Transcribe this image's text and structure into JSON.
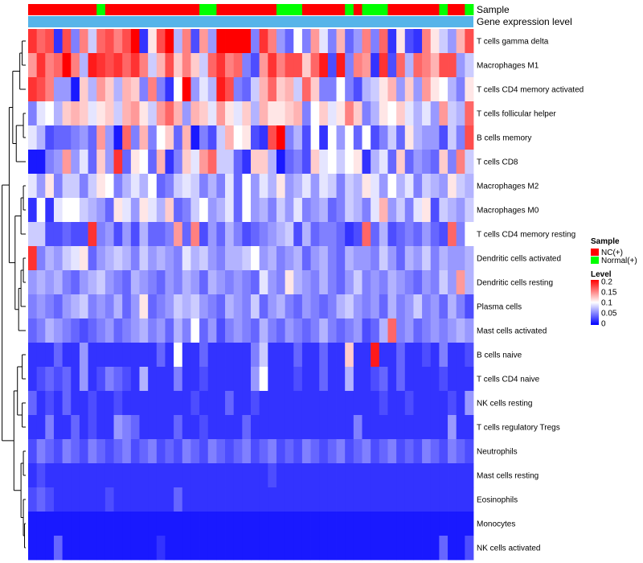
{
  "chart_data": {
    "type": "heatmap",
    "title": "",
    "n_samples": 52,
    "annotation_tracks": [
      "Sample",
      "Gene expression level"
    ],
    "sample_groups": [
      "NC(+)",
      "NC(+)",
      "NC(+)",
      "NC(+)",
      "NC(+)",
      "NC(+)",
      "NC(+)",
      "NC(+)",
      "Normal(+)",
      "NC(+)",
      "NC(+)",
      "NC(+)",
      "NC(+)",
      "NC(+)",
      "NC(+)",
      "NC(+)",
      "NC(+)",
      "NC(+)",
      "NC(+)",
      "NC(+)",
      "Normal(+)",
      "Normal(+)",
      "NC(+)",
      "NC(+)",
      "NC(+)",
      "NC(+)",
      "NC(+)",
      "NC(+)",
      "NC(+)",
      "Normal(+)",
      "Normal(+)",
      "Normal(+)",
      "NC(+)",
      "NC(+)",
      "NC(+)",
      "NC(+)",
      "NC(+)",
      "Normal(+)",
      "NC(+)",
      "Normal(+)",
      "Normal(+)",
      "Normal(+)",
      "NC(+)",
      "NC(+)",
      "NC(+)",
      "NC(+)",
      "NC(+)",
      "NC(+)",
      "Normal(+)",
      "NC(+)",
      "NC(+)",
      "Normal(+)"
    ],
    "rows": [
      "T cells gamma delta",
      "Macrophages M1",
      "T cells CD4 memory activated",
      "T cells follicular helper",
      "B cells memory",
      "T cells CD8",
      "Macrophages M2",
      "Macrophages M0",
      "T cells CD4 memory resting",
      "Dendritic cells activated",
      "Dendritic cells resting",
      "Plasma cells",
      "Mast cells activated",
      "B cells naive",
      "T cells CD4 naive",
      "NK cells resting",
      "T cells regulatory  Tregs",
      "Neutrophils",
      "Mast cells resting",
      "Eosinophils",
      "Monocytes",
      "NK cells activated"
    ],
    "level_range": [
      0,
      0.2
    ],
    "legend": {
      "sample_title": "Sample",
      "sample_entries": [
        {
          "label": "NC(+)",
          "color": "#ff0000"
        },
        {
          "label": "Normal(+)",
          "color": "#00ff00"
        }
      ],
      "level_title": "Level",
      "level_ticks": [
        "0.2",
        "0.15",
        "0.1",
        "0.05",
        "0"
      ]
    },
    "values": [
      [
        0.18,
        0.16,
        0.17,
        0.02,
        0.17,
        0.05,
        0.15,
        0.08,
        0.16,
        0.17,
        0.15,
        0.17,
        0.2,
        0.02,
        0.11,
        0.17,
        0.2,
        0.07,
        0.15,
        0.03,
        0.14,
        0.06,
        0.2,
        0.2,
        0.2,
        0.2,
        0.05,
        0.18,
        0.15,
        0.06,
        0.04,
        0.1,
        0.05,
        0.14,
        0.09,
        0.05,
        0.13,
        0.04,
        0.06,
        0.15,
        0.05,
        0.16,
        0.02,
        0.11,
        0.03,
        0.02,
        0.15,
        0.11,
        0.08,
        0.06,
        0.13,
        0.17
      ],
      [
        0.14,
        0.18,
        0.15,
        0.16,
        0.2,
        0.15,
        0.07,
        0.19,
        0.18,
        0.17,
        0.18,
        0.16,
        0.18,
        0.15,
        0.08,
        0.13,
        0.17,
        0.12,
        0.15,
        0.12,
        0.08,
        0.16,
        0.18,
        0.15,
        0.16,
        0.05,
        0.03,
        0.14,
        0.18,
        0.15,
        0.17,
        0.17,
        0.12,
        0.16,
        0.19,
        0.03,
        0.19,
        0.05,
        0.15,
        0.14,
        0.02,
        0.18,
        0.03,
        0.16,
        0.07,
        0.16,
        0.15,
        0.13,
        0.17,
        0.17,
        0.06,
        0.08
      ],
      [
        0.18,
        0.17,
        0.15,
        0.06,
        0.06,
        0.01,
        0.12,
        0.07,
        0.14,
        0.12,
        0.07,
        0.13,
        0.12,
        0.05,
        0.15,
        0.05,
        0.02,
        0.1,
        0.2,
        0.06,
        0.09,
        0.07,
        0.19,
        0.17,
        0.05,
        0.04,
        0.08,
        0.13,
        0.16,
        0.12,
        0.13,
        0.08,
        0.16,
        0.12,
        0.05,
        0.05,
        0.1,
        0.05,
        0.03,
        0.07,
        0.08,
        0.11,
        0.13,
        0.06,
        0.12,
        0.06,
        0.14,
        0.11,
        0.1,
        0.07,
        0.05,
        0.11
      ],
      [
        0.05,
        0.09,
        0.1,
        0.07,
        0.12,
        0.13,
        0.12,
        0.09,
        0.11,
        0.12,
        0.08,
        0.13,
        0.14,
        0.11,
        0.08,
        0.14,
        0.16,
        0.13,
        0.06,
        0.13,
        0.12,
        0.09,
        0.14,
        0.11,
        0.09,
        0.12,
        0.07,
        0.13,
        0.11,
        0.11,
        0.12,
        0.13,
        0.05,
        0.1,
        0.12,
        0.09,
        0.11,
        0.15,
        0.12,
        0.05,
        0.07,
        0.11,
        0.1,
        0.12,
        0.09,
        0.07,
        0.09,
        0.06,
        0.14,
        0.08,
        0.07,
        0.16
      ],
      [
        0.09,
        0.07,
        0.03,
        0.04,
        0.04,
        0.05,
        0.06,
        0.04,
        0.14,
        0.06,
        0.01,
        0.16,
        0.05,
        0.13,
        0.05,
        0.1,
        0.12,
        0.04,
        0.13,
        0.01,
        0.05,
        0.03,
        0.08,
        0.13,
        0.1,
        0.11,
        0.03,
        0.02,
        0.17,
        0.2,
        0.05,
        0.07,
        0.03,
        0.1,
        0.02,
        0.1,
        0.06,
        0.1,
        0.04,
        0.1,
        0.03,
        0.05,
        0.08,
        0.04,
        0.11,
        0.07,
        0.06,
        0.06,
        0.03,
        0.08,
        0.05,
        0.17
      ],
      [
        0.01,
        0.01,
        0.05,
        0.06,
        0.14,
        0.06,
        0.09,
        0.04,
        0.12,
        0.06,
        0.18,
        0.04,
        0.11,
        0.1,
        0.04,
        0.13,
        0.02,
        0.05,
        0.12,
        0.09,
        0.14,
        0.16,
        0.08,
        0.08,
        0.04,
        0.02,
        0.12,
        0.12,
        0.07,
        0.01,
        0.04,
        0.05,
        0.03,
        0.12,
        0.09,
        0.1,
        0.08,
        0.1,
        0.11,
        0.02,
        0.07,
        0.09,
        0.04,
        0.12,
        0.04,
        0.06,
        0.05,
        0.04,
        0.12,
        0.05,
        0.15,
        0.08
      ],
      [
        0.09,
        0.06,
        0.11,
        0.05,
        0.08,
        0.08,
        0.05,
        0.08,
        0.11,
        0.1,
        0.05,
        0.07,
        0.09,
        0.07,
        0.1,
        0.04,
        0.05,
        0.08,
        0.09,
        0.08,
        0.05,
        0.07,
        0.05,
        0.09,
        0.04,
        0.1,
        0.06,
        0.09,
        0.07,
        0.11,
        0.06,
        0.07,
        0.09,
        0.06,
        0.09,
        0.08,
        0.05,
        0.08,
        0.07,
        0.11,
        0.09,
        0.06,
        0.1,
        0.07,
        0.09,
        0.05,
        0.08,
        0.07,
        0.06,
        0.11,
        0.08,
        0.07
      ],
      [
        0.02,
        0.1,
        0.02,
        0.09,
        0.1,
        0.1,
        0.08,
        0.07,
        0.06,
        0.04,
        0.11,
        0.09,
        0.06,
        0.11,
        0.09,
        0.07,
        0.12,
        0.04,
        0.05,
        0.08,
        0.1,
        0.06,
        0.07,
        0.09,
        0.04,
        0.1,
        0.06,
        0.07,
        0.05,
        0.08,
        0.06,
        0.09,
        0.05,
        0.06,
        0.07,
        0.04,
        0.05,
        0.08,
        0.07,
        0.05,
        0.09,
        0.13,
        0.06,
        0.08,
        0.05,
        0.09,
        0.11,
        0.03,
        0.08,
        0.07,
        0.06,
        0.08
      ],
      [
        0.08,
        0.08,
        0.03,
        0.03,
        0.04,
        0.03,
        0.03,
        0.18,
        0.05,
        0.06,
        0.03,
        0.06,
        0.03,
        0.07,
        0.04,
        0.04,
        0.05,
        0.14,
        0.04,
        0.15,
        0.03,
        0.06,
        0.04,
        0.07,
        0.05,
        0.03,
        0.04,
        0.05,
        0.06,
        0.07,
        0.08,
        0.03,
        0.07,
        0.04,
        0.05,
        0.05,
        0.04,
        0.02,
        0.03,
        0.16,
        0.04,
        0.07,
        0.03,
        0.04,
        0.05,
        0.04,
        0.06,
        0.04,
        0.03,
        0.16,
        0.05,
        0.1
      ],
      [
        0.18,
        0.05,
        0.07,
        0.06,
        0.08,
        0.09,
        0.11,
        0.04,
        0.06,
        0.07,
        0.08,
        0.07,
        0.05,
        0.08,
        0.06,
        0.07,
        0.06,
        0.05,
        0.09,
        0.07,
        0.08,
        0.06,
        0.05,
        0.07,
        0.07,
        0.08,
        0.1,
        0.06,
        0.07,
        0.05,
        0.06,
        0.07,
        0.04,
        0.06,
        0.07,
        0.05,
        0.04,
        0.07,
        0.06,
        0.06,
        0.05,
        0.08,
        0.06,
        0.04,
        0.07,
        0.06,
        0.08,
        0.05,
        0.07,
        0.06,
        0.06,
        0.07
      ],
      [
        0.06,
        0.07,
        0.06,
        0.07,
        0.05,
        0.04,
        0.06,
        0.07,
        0.08,
        0.06,
        0.05,
        0.04,
        0.07,
        0.06,
        0.05,
        0.04,
        0.06,
        0.05,
        0.07,
        0.06,
        0.04,
        0.07,
        0.06,
        0.05,
        0.06,
        0.05,
        0.04,
        0.09,
        0.06,
        0.05,
        0.11,
        0.07,
        0.06,
        0.05,
        0.07,
        0.05,
        0.04,
        0.06,
        0.08,
        0.05,
        0.06,
        0.05,
        0.07,
        0.06,
        0.05,
        0.04,
        0.06,
        0.05,
        0.08,
        0.06,
        0.14,
        0.07
      ],
      [
        0.05,
        0.06,
        0.05,
        0.04,
        0.06,
        0.07,
        0.08,
        0.05,
        0.06,
        0.05,
        0.07,
        0.04,
        0.06,
        0.11,
        0.04,
        0.05,
        0.06,
        0.08,
        0.07,
        0.08,
        0.06,
        0.05,
        0.04,
        0.07,
        0.06,
        0.05,
        0.08,
        0.04,
        0.06,
        0.07,
        0.05,
        0.04,
        0.06,
        0.05,
        0.04,
        0.05,
        0.07,
        0.08,
        0.06,
        0.05,
        0.06,
        0.04,
        0.07,
        0.05,
        0.06,
        0.08,
        0.05,
        0.06,
        0.04,
        0.07,
        0.05,
        0.03
      ],
      [
        0.04,
        0.05,
        0.07,
        0.06,
        0.05,
        0.04,
        0.03,
        0.04,
        0.05,
        0.06,
        0.04,
        0.05,
        0.06,
        0.07,
        0.05,
        0.06,
        0.04,
        0.07,
        0.05,
        0.1,
        0.04,
        0.06,
        0.03,
        0.05,
        0.06,
        0.05,
        0.04,
        0.07,
        0.05,
        0.04,
        0.06,
        0.05,
        0.04,
        0.05,
        0.07,
        0.05,
        0.04,
        0.05,
        0.06,
        0.03,
        0.04,
        0.07,
        0.16,
        0.05,
        0.06,
        0.04,
        0.05,
        0.06,
        0.05,
        0.06,
        0.07,
        0.06
      ],
      [
        0.02,
        0.02,
        0.02,
        0.04,
        0.02,
        0.02,
        0.06,
        0.02,
        0.02,
        0.02,
        0.02,
        0.02,
        0.02,
        0.02,
        0.02,
        0.04,
        0.02,
        0.1,
        0.02,
        0.02,
        0.04,
        0.02,
        0.02,
        0.02,
        0.02,
        0.02,
        0.05,
        0.08,
        0.02,
        0.02,
        0.02,
        0.04,
        0.02,
        0.02,
        0.04,
        0.02,
        0.02,
        0.12,
        0.02,
        0.02,
        0.19,
        0.02,
        0.02,
        0.04,
        0.02,
        0.02,
        0.03,
        0.02,
        0.05,
        0.02,
        0.02,
        0.03
      ],
      [
        0.02,
        0.03,
        0.04,
        0.03,
        0.04,
        0.02,
        0.06,
        0.02,
        0.03,
        0.05,
        0.04,
        0.03,
        0.02,
        0.07,
        0.02,
        0.02,
        0.02,
        0.05,
        0.02,
        0.02,
        0.03,
        0.02,
        0.02,
        0.02,
        0.02,
        0.02,
        0.06,
        0.1,
        0.02,
        0.02,
        0.02,
        0.03,
        0.02,
        0.02,
        0.04,
        0.02,
        0.02,
        0.07,
        0.02,
        0.02,
        0.03,
        0.04,
        0.02,
        0.04,
        0.02,
        0.02,
        0.02,
        0.02,
        0.03,
        0.02,
        0.02,
        0.02
      ],
      [
        0.04,
        0.02,
        0.03,
        0.02,
        0.04,
        0.02,
        0.02,
        0.03,
        0.02,
        0.02,
        0.03,
        0.02,
        0.02,
        0.02,
        0.02,
        0.02,
        0.02,
        0.02,
        0.02,
        0.03,
        0.02,
        0.02,
        0.02,
        0.04,
        0.02,
        0.02,
        0.03,
        0.02,
        0.02,
        0.02,
        0.02,
        0.02,
        0.02,
        0.02,
        0.02,
        0.02,
        0.02,
        0.02,
        0.02,
        0.02,
        0.02,
        0.03,
        0.02,
        0.02,
        0.03,
        0.02,
        0.02,
        0.02,
        0.02,
        0.03,
        0.02,
        0.06
      ],
      [
        0.02,
        0.02,
        0.05,
        0.02,
        0.02,
        0.04,
        0.02,
        0.03,
        0.02,
        0.02,
        0.06,
        0.05,
        0.04,
        0.02,
        0.02,
        0.02,
        0.02,
        0.04,
        0.02,
        0.02,
        0.03,
        0.02,
        0.02,
        0.02,
        0.02,
        0.04,
        0.02,
        0.02,
        0.02,
        0.02,
        0.02,
        0.02,
        0.02,
        0.02,
        0.02,
        0.02,
        0.02,
        0.02,
        0.05,
        0.02,
        0.02,
        0.02,
        0.02,
        0.02,
        0.02,
        0.02,
        0.02,
        0.02,
        0.02,
        0.06,
        0.02,
        0.02
      ],
      [
        0.03,
        0.05,
        0.04,
        0.03,
        0.05,
        0.04,
        0.03,
        0.05,
        0.04,
        0.03,
        0.04,
        0.05,
        0.03,
        0.04,
        0.05,
        0.03,
        0.04,
        0.03,
        0.05,
        0.04,
        0.03,
        0.05,
        0.04,
        0.03,
        0.04,
        0.05,
        0.03,
        0.04,
        0.05,
        0.03,
        0.04,
        0.03,
        0.05,
        0.04,
        0.03,
        0.04,
        0.05,
        0.03,
        0.04,
        0.05,
        0.03,
        0.04,
        0.05,
        0.03,
        0.04,
        0.03,
        0.05,
        0.04,
        0.03,
        0.05,
        0.04,
        0.03
      ],
      [
        0.02,
        0.03,
        0.02,
        0.02,
        0.02,
        0.02,
        0.02,
        0.02,
        0.02,
        0.02,
        0.02,
        0.02,
        0.02,
        0.02,
        0.02,
        0.02,
        0.02,
        0.02,
        0.02,
        0.02,
        0.02,
        0.02,
        0.02,
        0.02,
        0.02,
        0.02,
        0.02,
        0.02,
        0.03,
        0.02,
        0.02,
        0.02,
        0.02,
        0.02,
        0.02,
        0.02,
        0.02,
        0.02,
        0.02,
        0.02,
        0.02,
        0.02,
        0.02,
        0.02,
        0.02,
        0.02,
        0.02,
        0.02,
        0.02,
        0.02,
        0.02,
        0.02
      ],
      [
        0.03,
        0.04,
        0.03,
        0.02,
        0.02,
        0.02,
        0.02,
        0.02,
        0.02,
        0.03,
        0.02,
        0.02,
        0.02,
        0.02,
        0.02,
        0.02,
        0.02,
        0.04,
        0.02,
        0.02,
        0.02,
        0.02,
        0.02,
        0.02,
        0.02,
        0.02,
        0.02,
        0.02,
        0.02,
        0.02,
        0.02,
        0.02,
        0.02,
        0.02,
        0.02,
        0.02,
        0.02,
        0.02,
        0.02,
        0.02,
        0.02,
        0.02,
        0.02,
        0.02,
        0.02,
        0.02,
        0.02,
        0.02,
        0.02,
        0.02,
        0.02,
        0.02
      ],
      [
        0.01,
        0.01,
        0.01,
        0.01,
        0.01,
        0.01,
        0.01,
        0.01,
        0.01,
        0.01,
        0.01,
        0.01,
        0.01,
        0.01,
        0.01,
        0.01,
        0.01,
        0.01,
        0.01,
        0.01,
        0.01,
        0.01,
        0.01,
        0.01,
        0.01,
        0.01,
        0.01,
        0.01,
        0.01,
        0.01,
        0.01,
        0.01,
        0.01,
        0.01,
        0.01,
        0.01,
        0.01,
        0.01,
        0.01,
        0.01,
        0.01,
        0.01,
        0.01,
        0.01,
        0.01,
        0.01,
        0.01,
        0.01,
        0.01,
        0.01,
        0.01,
        0.01
      ],
      [
        0.01,
        0.01,
        0.01,
        0.04,
        0.01,
        0.01,
        0.01,
        0.01,
        0.01,
        0.01,
        0.01,
        0.01,
        0.01,
        0.01,
        0.01,
        0.02,
        0.01,
        0.01,
        0.01,
        0.01,
        0.01,
        0.01,
        0.01,
        0.01,
        0.01,
        0.01,
        0.01,
        0.01,
        0.01,
        0.01,
        0.01,
        0.01,
        0.01,
        0.01,
        0.01,
        0.01,
        0.01,
        0.01,
        0.01,
        0.01,
        0.01,
        0.01,
        0.01,
        0.01,
        0.01,
        0.01,
        0.01,
        0.01,
        0.04,
        0.01,
        0.01,
        0.03
      ]
    ]
  },
  "colors": {
    "nc": "#ff0000",
    "normal": "#00ff00",
    "expression_track": "#56b4e9",
    "low": "#0000ff",
    "mid": "#ffffff",
    "high": "#ff0000"
  }
}
